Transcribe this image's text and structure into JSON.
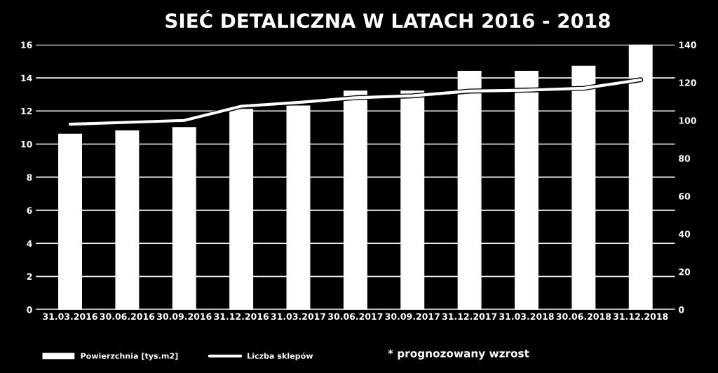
{
  "chart_data": {
    "type": "bar",
    "title": "SIEĆ DETALICZNA W LATACH 2016 - 2018",
    "categories": [
      "31.03.2016",
      "30.06.2016",
      "30.09.2016",
      "31.12.2016",
      "31.03.2017",
      "30.06.2017",
      "30.09.2017",
      "31.12.2017",
      "31.03.2018",
      "30.06.2018",
      "31.12.2018"
    ],
    "series": [
      {
        "name": "Powierzchnia [tys.m2]",
        "color": "#ffffff",
        "values": [
          10.6,
          10.8,
          11.0,
          12.1,
          12.3,
          13.2,
          13.2,
          14.4,
          14.4,
          14.7,
          16.0
        ]
      },
      {
        "name": "Liczba sklepów",
        "type": "line",
        "axis": "y2",
        "color": "#ffffff",
        "values": [
          98,
          99,
          100,
          107.5,
          109.5,
          112,
          113,
          115.5,
          116,
          117,
          121.5
        ]
      }
    ],
    "ylim": [
      0,
      16
    ],
    "yticks": [
      0,
      2,
      4,
      6,
      8,
      10,
      12,
      14,
      16
    ],
    "y2lim": [
      0,
      140
    ],
    "y2ticks": [
      0,
      20,
      40,
      60,
      80,
      100,
      120,
      140
    ],
    "grid": "y",
    "legend": "bottom",
    "marker": "none",
    "line_style": "solid",
    "annotations": [
      "* prognozowany wzrost"
    ]
  }
}
